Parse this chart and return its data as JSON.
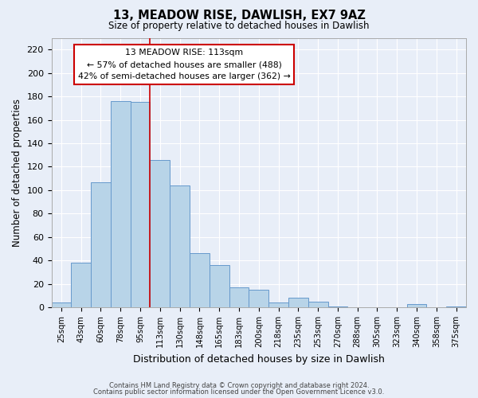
{
  "title": "13, MEADOW RISE, DAWLISH, EX7 9AZ",
  "subtitle": "Size of property relative to detached houses in Dawlish",
  "xlabel": "Distribution of detached houses by size in Dawlish",
  "ylabel": "Number of detached properties",
  "bar_labels": [
    "25sqm",
    "43sqm",
    "60sqm",
    "78sqm",
    "95sqm",
    "113sqm",
    "130sqm",
    "148sqm",
    "165sqm",
    "183sqm",
    "200sqm",
    "218sqm",
    "235sqm",
    "253sqm",
    "270sqm",
    "288sqm",
    "305sqm",
    "323sqm",
    "340sqm",
    "358sqm",
    "375sqm"
  ],
  "bar_heights": [
    4,
    38,
    107,
    176,
    175,
    126,
    104,
    46,
    36,
    17,
    15,
    4,
    8,
    5,
    1,
    0,
    0,
    0,
    3,
    0,
    1
  ],
  "bar_color": "#b8d4e8",
  "bar_edge_color": "#6699cc",
  "highlight_index": 5,
  "highlight_line_color": "#cc0000",
  "ylim": [
    0,
    230
  ],
  "yticks": [
    0,
    20,
    40,
    60,
    80,
    100,
    120,
    140,
    160,
    180,
    200,
    220
  ],
  "annotation_title": "13 MEADOW RISE: 113sqm",
  "annotation_line1": "← 57% of detached houses are smaller (488)",
  "annotation_line2": "42% of semi-detached houses are larger (362) →",
  "annotation_box_color": "#ffffff",
  "annotation_box_edge": "#cc0000",
  "footer1": "Contains HM Land Registry data © Crown copyright and database right 2024.",
  "footer2": "Contains public sector information licensed under the Open Government Licence v3.0.",
  "background_color": "#e8eef8",
  "grid_color": "#ffffff",
  "fig_width": 6.0,
  "fig_height": 5.0
}
